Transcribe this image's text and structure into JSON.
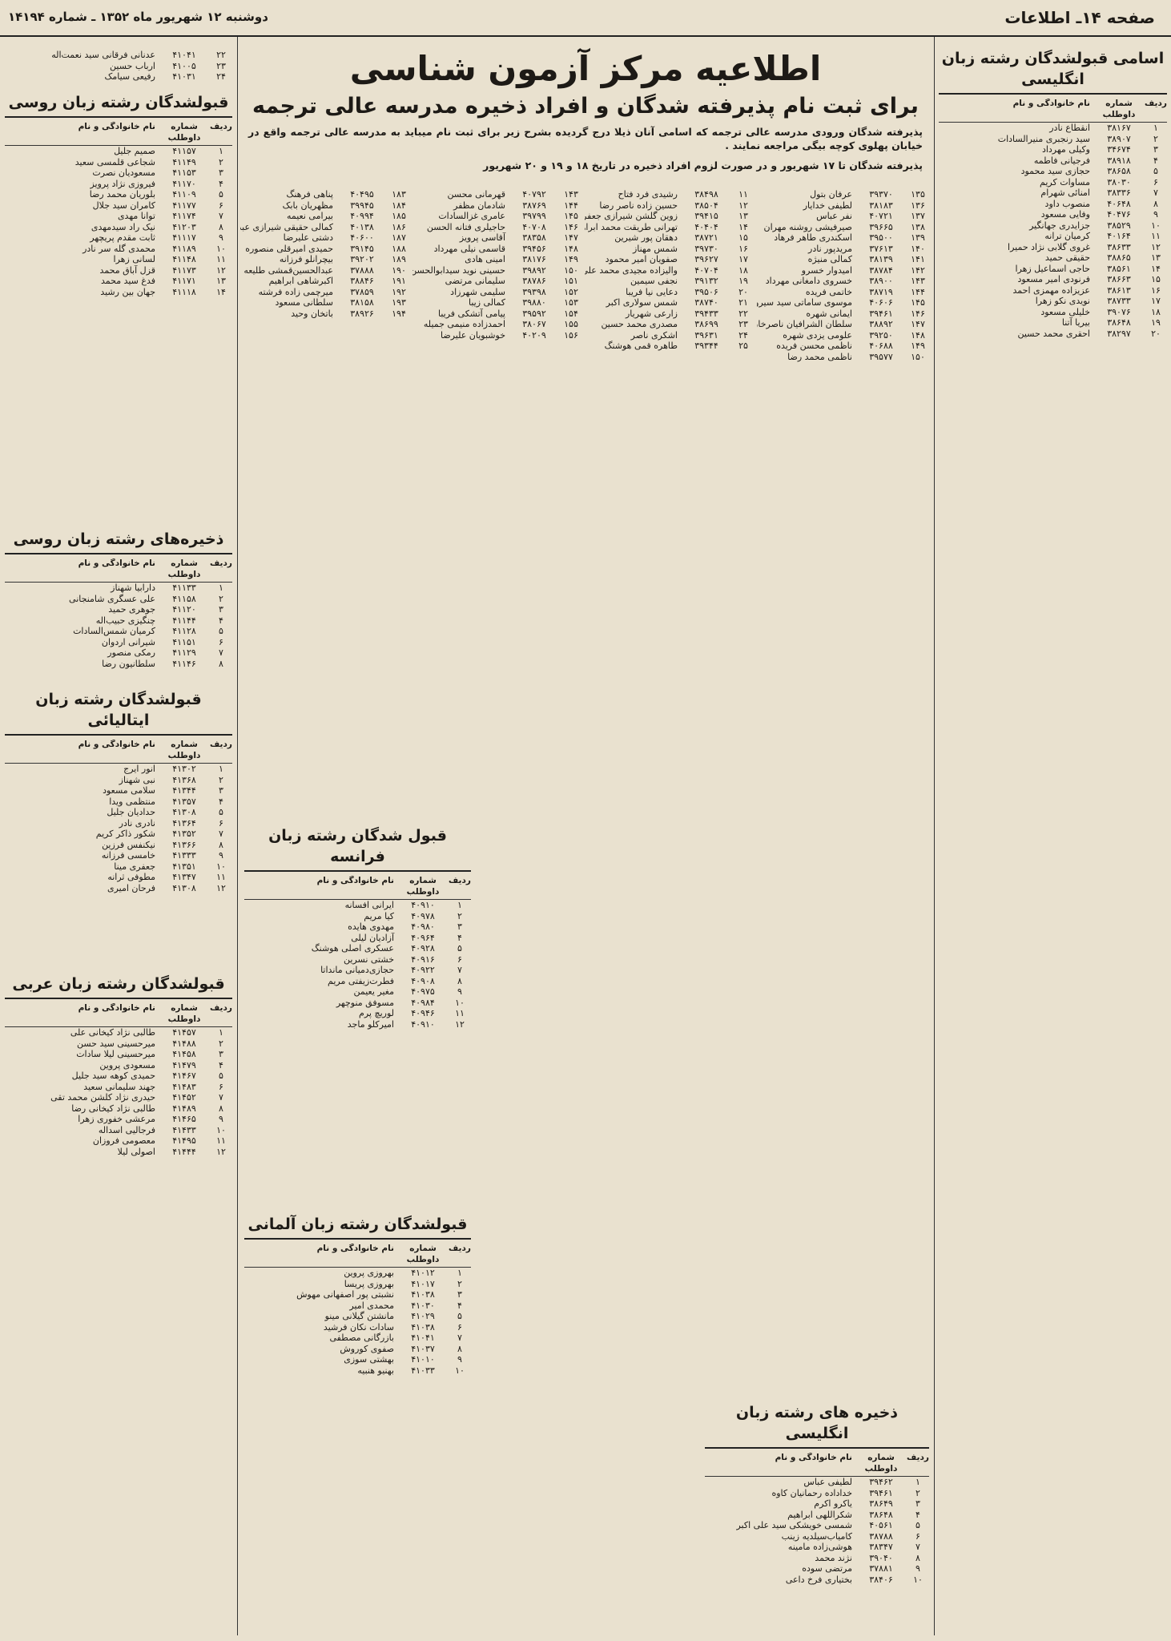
{
  "header": {
    "page": "صفحه ۱۴ـ اطلاعات",
    "date": "دوشنبه ۱۲ شهریور ماه ۱۳۵۲ ـ شماره ۱۴۱۹۴"
  },
  "notice": {
    "title": "اطلاعیه مرکز آزمون شناسی",
    "subtitle": "برای ثبت نام پذیرفته شدگان و افراد ذخیره مدرسه عالی ترجمه",
    "text1": "پذیرفته شدگان ورودی مدرسه عالی ترجمه که اسامی آنان ذیلا درج گردیده بشرح زیر برای ثبت نام میباید به مدرسه عالی ترجمه واقع در خیابان پهلوی کوچه بیگی مراجعه نمایند .",
    "text2": "پذیرفته شدگان تا ۱۷ شهریور و در صورت لزوم افراد ذخیره در تاریخ ۱۸ و ۱۹ و ۲۰ شهریور"
  },
  "lists": [
    {
      "rows": [
        [
          "۱۳۵",
          "۳۹۳۷۰",
          "عرفان بتول"
        ],
        [
          "۱۳۶",
          "۳۸۱۸۳",
          "لطیفی خدایار"
        ],
        [
          "۱۳۷",
          "۴۰۷۲۱",
          "نفر عباس"
        ],
        [
          "۱۳۸",
          "۳۹۶۶۵",
          "صیرفیشی روشنه مهران"
        ],
        [
          "۱۳۹",
          "۳۹۵۰۰",
          "اسکندری طاهر فرهاد"
        ],
        [
          "۱۴۰",
          "۳۷۶۱۳",
          "مریدپور نادر"
        ],
        [
          "۱۴۱",
          "۳۸۱۳۹",
          "کمالی منیژه"
        ],
        [
          "۱۴۲",
          "۳۸۷۸۴",
          "امیدوار خسرو"
        ],
        [
          "۱۴۳",
          "۳۸۹۰۰",
          "خسروی دامغانی مهرداد"
        ],
        [
          "۱۴۴",
          "۳۸۷۱۹",
          "خاتمی فریده"
        ],
        [
          "۱۴۵",
          "۴۰۶۰۶",
          "موسوی ساماتی سید سیروس"
        ],
        [
          "۱۴۶",
          "۳۹۴۶۱",
          "ایمانی شهره"
        ],
        [
          "۱۴۷",
          "۳۸۸۹۲",
          "سلطان الشرافیان ناصرخان"
        ],
        [
          "۱۴۸",
          "۳۹۲۵۰",
          "علومی یزدی شهره"
        ],
        [
          "۱۴۹",
          "۴۰۶۸۸",
          "ناظمی محسن فریده"
        ],
        [
          "۱۵۰",
          "۳۹۵۷۷",
          "ناظمی محمد رضا"
        ]
      ]
    },
    {
      "rows": [
        [
          "۱۱",
          "۳۸۴۹۸",
          "رشیدی فرد فتاح"
        ],
        [
          "۱۲",
          "۳۸۵۰۴",
          "حسین زاده ناصر رضا"
        ],
        [
          "۱۳",
          "۳۹۴۱۵",
          "زوین گلشن شیرازی جعفر"
        ],
        [
          "۱۴",
          "۴۰۴۰۴",
          "تهرانی طریقت محمد ابراهیم"
        ],
        [
          "۱۵",
          "۳۸۷۲۱",
          "دهقان پور شیرین"
        ],
        [
          "۱۶",
          "۳۹۷۳۰",
          "شمس مهناز"
        ],
        [
          "۱۷",
          "۳۹۶۲۷",
          "صفویان امیر محمود"
        ],
        [
          "۱۸",
          "۴۰۷۰۴",
          "والیزاده مجیدی محمد علی"
        ],
        [
          "۱۹",
          "۳۹۱۳۲",
          "نجفی سیمین"
        ],
        [
          "۲۰",
          "۳۹۵۰۶",
          "دعایی نیا فریبا"
        ],
        [
          "۲۱",
          "۳۸۷۴۰",
          "شمس سولاری اکبر"
        ],
        [
          "۲۲",
          "۳۹۴۳۳",
          "زارعی شهریار"
        ],
        [
          "۲۳",
          "۳۸۶۹۹",
          "مصدری محمد حسین"
        ],
        [
          "۲۴",
          "۳۹۶۳۱",
          "اشکری ناصر"
        ],
        [
          "۲۵",
          "۳۹۳۴۴",
          "طاهره قمی هوشنگ"
        ]
      ]
    },
    {
      "rows": [
        [
          "۱۴۳",
          "۴۰۷۹۲",
          "قهرمانی محسن"
        ],
        [
          "۱۴۴",
          "۳۸۷۶۹",
          "شادمان مظفر"
        ],
        [
          "۱۴۵",
          "۳۹۷۹۹",
          "عامری غزالسادات"
        ],
        [
          "۱۴۶",
          "۴۰۷۰۸",
          "حاجیلری فتانه الحسن"
        ],
        [
          "۱۴۷",
          "۳۸۳۵۸",
          "آقاسی پرویز"
        ],
        [
          "۱۴۸",
          "۳۹۴۵۶",
          "قاسمی نیلی مهرداد"
        ],
        [
          "۱۴۹",
          "۳۸۱۷۶",
          "امینی هادی"
        ],
        [
          "۱۵۰",
          "۳۹۸۹۲",
          "حسینی نوید سیدابوالحسن"
        ],
        [
          "۱۵۱",
          "۳۸۷۸۶",
          "سلیمانی مرتضی"
        ],
        [
          "۱۵۲",
          "۳۹۳۹۸",
          "سلیمی شهرزاد"
        ],
        [
          "۱۵۳",
          "۳۹۸۸۰",
          "کمالی زیبا"
        ],
        [
          "۱۵۴",
          "۳۹۵۹۲",
          "پیامی آتشکی فریبا"
        ],
        [
          "۱۵۵",
          "۳۸۰۶۷",
          "احمدزاده منیمی جمیله"
        ],
        [
          "۱۵۶",
          "۴۰۲۰۹",
          "خوشبویان علیرضا"
        ]
      ]
    },
    {
      "rows": [
        [
          "۱۸۳",
          "۴۰۴۹۵",
          "پناهی فرهنگ"
        ],
        [
          "۱۸۴",
          "۳۹۹۴۵",
          "مظهریان بابک"
        ],
        [
          "۱۸۵",
          "۴۰۹۹۴",
          "بیرامی نعیمه"
        ],
        [
          "۱۸۶",
          "۴۰۱۳۸",
          "کمالی حقیقی شیرازی عبدالرحیم"
        ],
        [
          "۱۸۷",
          "۴۰۶۰۰",
          "دشتی علیرضا"
        ],
        [
          "۱۸۸",
          "۳۹۱۴۵",
          "حمیدی امیرقلی منصوره"
        ],
        [
          "۱۸۹",
          "۳۹۲۰۲",
          "بیچرانلو فرزانه"
        ],
        [
          "۱۹۰",
          "۳۷۸۸۸",
          "عبدالحسین‌قمشی طلیعه"
        ],
        [
          "۱۹۱",
          "۳۸۸۴۶",
          "اکبرشاهی ابراهیم"
        ],
        [
          "۱۹۲",
          "۳۷۸۵۹",
          "میرچمی زاده فرشته"
        ],
        [
          "۱۹۳",
          "۳۸۱۵۸",
          "سلطانی مسعود"
        ],
        [
          "۱۹۴",
          "۳۸۹۲۶",
          "باتخان وحید"
        ]
      ]
    }
  ],
  "sections": [
    {
      "title": "اسامی قبولشدگان رشته زبان انگلیسی",
      "columns": [
        "ردیف",
        "شماره داوطلب",
        "نام خانوادگی و نام"
      ],
      "rows": [
        [
          "۱",
          "۳۸۱۶۷",
          "انقطاع نادر"
        ],
        [
          "۲",
          "۳۸۹۰۷",
          "سید رنجبری منیرالسادات"
        ],
        [
          "۳",
          "۳۴۶۷۴",
          "وکیلی مهرداد"
        ],
        [
          "۴",
          "۳۸۹۱۸",
          "فرجیانی فاطمه"
        ],
        [
          "۵",
          "۳۸۶۵۸",
          "حجازی سید محمود"
        ],
        [
          "۶",
          "۳۸۰۳۰",
          "مساوات کریم"
        ],
        [
          "۷",
          "۳۸۳۳۶",
          "امنائی شهرام"
        ],
        [
          "۸",
          "۴۰۶۴۸",
          "منصوب داود"
        ],
        [
          "۹",
          "۴۰۴۷۶",
          "وفایی مسعود"
        ],
        [
          "۱۰",
          "۳۸۵۲۹",
          "جزایدری جهانگیر"
        ],
        [
          "۱۱",
          "۴۰۱۶۴",
          "کرمیان ترانه"
        ],
        [
          "۱۲",
          "۳۸۶۳۳",
          "غروی گلابی نژاد حمیرا"
        ],
        [
          "۱۳",
          "۳۸۸۶۵",
          "حقیقی حمید"
        ],
        [
          "۱۴",
          "۳۸۵۶۱",
          "حاجی اسماعیل زهرا"
        ],
        [
          "۱۵",
          "۳۸۶۶۳",
          "فرنودی امیر مسعود"
        ],
        [
          "۱۶",
          "۳۸۶۱۳",
          "عزیزاده مهمزی احمد"
        ],
        [
          "۱۷",
          "۳۸۷۳۳",
          "نویدی نکو زهرا"
        ],
        [
          "۱۸",
          "۳۹۰۷۶",
          "خلیلی مسعود"
        ],
        [
          "۱۹",
          "۳۸۶۴۸",
          "بیریا آتنا"
        ],
        [
          "۲۰",
          "۳۸۲۹۷",
          "احقری محمد حسین"
        ]
      ]
    },
    {
      "title": "قبولشدگان رشته زبان روسی",
      "columns": [
        "ردیف",
        "شماره داوطلب",
        "نام خانوادگی و نام"
      ],
      "rows": [
        [
          "۱",
          "۴۱۱۵۷",
          "صمیم جلیل"
        ],
        [
          "۲",
          "۴۱۱۴۹",
          "شجاعی قلمسی سعید"
        ],
        [
          "۳",
          "۴۱۱۵۳",
          "مسعودیان نصرت"
        ],
        [
          "۴",
          "۴۱۱۷۰",
          "فیروزی نژاد پرویز"
        ],
        [
          "۵",
          "۴۱۱۰۹",
          "بلوریان محمد رضا"
        ],
        [
          "۶",
          "۴۱۱۷۷",
          "کامران سید جلال"
        ],
        [
          "۷",
          "۴۱۱۷۴",
          "توانا مهدی"
        ],
        [
          "۸",
          "۴۱۲۰۳",
          "نیک راد سیدمهدی"
        ],
        [
          "۹",
          "۴۱۱۱۷",
          "ثابت مقدم پریچهر"
        ],
        [
          "۱۰",
          "۴۱۱۸۹",
          "محمدی گله سر نادر"
        ],
        [
          "۱۱",
          "۴۱۱۴۸",
          "لسانی زهرا"
        ],
        [
          "۱۲",
          "۴۱۱۷۳",
          "قزل آباق محمد"
        ],
        [
          "۱۳",
          "۴۱۱۷۱",
          "فدغ سید محمد"
        ],
        [
          "۱۴",
          "۴۱۱۱۸",
          "جهان بین رشید"
        ]
      ]
    },
    {
      "title": "ذخیره‌های رشته زبان روسی",
      "columns": [
        "ردیف",
        "شماره داوطلب",
        "نام خانوادگی و نام"
      ],
      "rows": [
        [
          "۱",
          "۴۱۱۳۳",
          "دارابیا شهناز"
        ],
        [
          "۲",
          "۴۱۱۵۸",
          "علی عسگری شامنجانی"
        ],
        [
          "۳",
          "۴۱۱۲۰",
          "جوهری حمید"
        ],
        [
          "۴",
          "۴۱۱۴۴",
          "چنگیزی حبیب‌اله"
        ],
        [
          "۵",
          "۴۱۱۲۸",
          "کرمیان شمس‌السادات"
        ],
        [
          "۶",
          "۴۱۱۵۱",
          "شیرانی اردوان"
        ],
        [
          "۷",
          "۴۱۱۲۹",
          "رمکی منصور"
        ],
        [
          "۸",
          "۴۱۱۴۶",
          "سلطانیون رضا"
        ]
      ]
    },
    {
      "title": "قبولشدگان رشته زبان ایتالیائی",
      "columns": [
        "ردیف",
        "شماره داوطلب",
        "نام خانوادگی و نام"
      ],
      "rows": [
        [
          "۱",
          "۴۱۳۰۲",
          "انور ایرج"
        ],
        [
          "۲",
          "۴۱۳۶۸",
          "نبی شهناز"
        ],
        [
          "۳",
          "۴۱۳۴۴",
          "سلامی مسعود"
        ],
        [
          "۴",
          "۴۱۳۵۷",
          "منتظمی ویدا"
        ],
        [
          "۵",
          "۴۱۳۰۸",
          "حدادیان جلیل"
        ],
        [
          "۶",
          "۴۱۳۶۴",
          "نادری نادر"
        ],
        [
          "۷",
          "۴۱۳۵۲",
          "شکور ذاکر کریم"
        ],
        [
          "۸",
          "۴۱۳۶۶",
          "نیکنفس فرزین"
        ],
        [
          "۹",
          "۴۱۳۳۳",
          "خامسی فرزانه"
        ],
        [
          "۱۰",
          "۴۱۳۵۱",
          "جعفری مینا"
        ],
        [
          "۱۱",
          "۴۱۳۴۷",
          "مطوفی ثرانه"
        ],
        [
          "۱۲",
          "۴۱۳۰۸",
          "فرحان امیری"
        ]
      ]
    },
    {
      "title": "قبولشدگان رشته زبان عربی",
      "columns": [
        "ردیف",
        "شماره داوطلب",
        "نام خانوادگی و نام"
      ],
      "rows": [
        [
          "۱",
          "۴۱۴۵۷",
          "طالبی نژاد کیخانی علی"
        ],
        [
          "۲",
          "۴۱۴۸۸",
          "میرحسینی سید حسن"
        ],
        [
          "۳",
          "۴۱۴۵۸",
          "میرحسینی لیلا سادات"
        ],
        [
          "۴",
          "۴۱۴۷۹",
          "مسعودی پروین"
        ],
        [
          "۵",
          "۴۱۴۶۷",
          "حمیدی کوهه سید جلیل"
        ],
        [
          "۶",
          "۴۱۴۸۳",
          "جهند سلیمانی سعید"
        ],
        [
          "۷",
          "۴۱۴۵۲",
          "حیدری نژاد کلشن محمد تقی"
        ],
        [
          "۸",
          "۴۱۴۸۹",
          "طالبی نژاد کیخانی رضا"
        ],
        [
          "۹",
          "۴۱۴۶۵",
          "مرعشی خفوری زهرا"
        ],
        [
          "۱۰",
          "۴۱۴۳۳",
          "فرجالیی اسداله"
        ],
        [
          "۱۱",
          "۴۱۴۹۵",
          "معصومی فروزان"
        ],
        [
          "۱۲",
          "۴۱۴۴۴",
          "اصولی لیلا"
        ]
      ]
    },
    {
      "title": "قبول شدگان رشته زبان فرانسه",
      "columns": [
        "ردیف",
        "شماره داوطلب",
        "نام خانوادگی و نام"
      ],
      "rows": [
        [
          "۱",
          "۴۰۹۱۰",
          "ایرانی افسانه"
        ],
        [
          "۲",
          "۴۰۹۷۸",
          "کیا مریم"
        ],
        [
          "۳",
          "۴۰۹۸۰",
          "مهدوی هایده"
        ],
        [
          "۴",
          "۴۰۹۶۴",
          "آزادیان لیلی"
        ],
        [
          "۵",
          "۴۰۹۲۸",
          "عسکری اصلی هوشنگ"
        ],
        [
          "۶",
          "۴۰۹۱۶",
          "خشتی نسرین"
        ],
        [
          "۷",
          "۴۰۹۲۲",
          "حجازی‌دمیانی مانداتا"
        ],
        [
          "۸",
          "۴۰۹۰۸",
          "فطرت‌زیفتی مریم"
        ],
        [
          "۹",
          "۴۰۹۷۵",
          "مغیر یعیمن"
        ],
        [
          "۱۰",
          "۴۰۹۸۴",
          "مسوفق منوچهر"
        ],
        [
          "۱۱",
          "۴۰۹۴۶",
          "لوریچ پرم"
        ],
        [
          "۱۲",
          "۴۰۹۱۰",
          "امیرکلو ماجد"
        ]
      ]
    },
    {
      "title": "قبولشدگان رشته زبان آلمانی",
      "columns": [
        "ردیف",
        "شماره داوطلب",
        "نام خانوادگی و نام"
      ],
      "rows": [
        [
          "۱",
          "۴۱۰۱۲",
          "بهروزی پروین"
        ],
        [
          "۲",
          "۴۱۰۱۷",
          "بهروزی پریسا"
        ],
        [
          "۳",
          "۴۱۰۳۸",
          "نشبتی پور اصفهانی مهوش"
        ],
        [
          "۴",
          "۴۱۰۳۰",
          "محمدی امیر"
        ],
        [
          "۵",
          "۴۱۰۲۹",
          "مانشتن گیلانی مینو"
        ],
        [
          "۶",
          "۴۱۰۳۸",
          "سادات نکان فرشید"
        ],
        [
          "۷",
          "۴۱۰۴۱",
          "بازرگانی مصطفی"
        ],
        [
          "۸",
          "۴۱۰۳۷",
          "صفوی کوروش"
        ],
        [
          "۹",
          "۴۱۰۱۰",
          "بهشتی سوزی"
        ],
        [
          "۱۰",
          "۴۱۰۳۳",
          "بهنیو هنبیه"
        ]
      ]
    },
    {
      "title": "ذخیره های رشته زبان انگلیسی",
      "columns": [
        "ردیف",
        "شماره داوطلب",
        "نام خانوادگی و نام"
      ],
      "rows": [
        [
          "۱",
          "۳۹۴۶۲",
          "لطیفی عباس"
        ],
        [
          "۲",
          "۳۹۴۶۱",
          "خداداده رحمانیان کاوه"
        ],
        [
          "۳",
          "۳۸۶۴۹",
          "یاکرو اکرم"
        ],
        [
          "۴",
          "۳۸۶۴۸",
          "شکراللهی ابراهیم"
        ],
        [
          "۵",
          "۴۰۵۶۱",
          "شمسی خویشکی سید علی اکبر"
        ],
        [
          "۶",
          "۳۸۷۸۸",
          "کامیاب‌سیلدیه زینب"
        ],
        [
          "۷",
          "۳۸۳۴۷",
          "هوشی‌زاده مامینه"
        ],
        [
          "۸",
          "۳۹۰۴۰",
          "نژند محمد"
        ],
        [
          "۹",
          "۳۷۸۸۱",
          "مرتضی سوده"
        ],
        [
          "۱۰",
          "۳۸۴۰۶",
          "بختیاری فرخ داعی"
        ]
      ]
    },
    {
      "title": null,
      "columns": [],
      "rows": [
        [
          "۲۲",
          "۴۱۰۴۱",
          "عدنانی فرقانی سید نعمت‌اله"
        ],
        [
          "۲۳",
          "۴۱۰۰۵",
          "ارباب حسین"
        ],
        [
          "۲۴",
          "۴۱۰۳۱",
          "رفیعی سیامک"
        ]
      ]
    }
  ]
}
